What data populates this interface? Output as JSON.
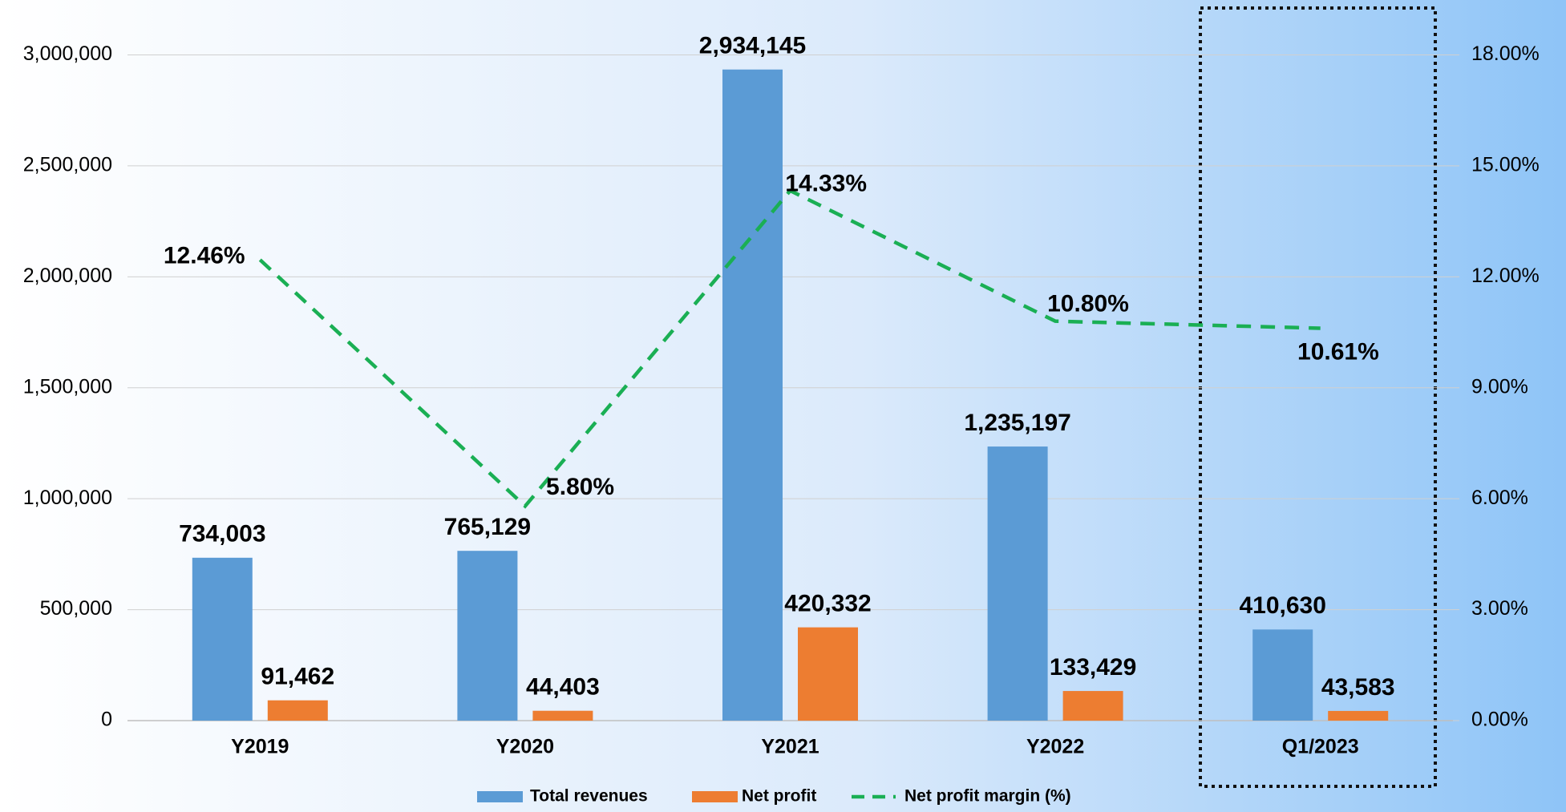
{
  "chart_data": {
    "type": "bar_line",
    "categories": [
      "Y2019",
      "Y2020",
      "Y2021",
      "Y2022",
      "Q1/2023"
    ],
    "series": [
      {
        "name": "Total revenues",
        "color": "#5b9bd5",
        "values": [
          734003,
          765129,
          2934145,
          1235197,
          410630
        ],
        "value_labels": [
          "734,003",
          "765,129",
          "2,934,145",
          "1,235,197",
          "410,630"
        ],
        "label_color": "#404040"
      },
      {
        "name": "Net profit",
        "color": "#ed7d31",
        "values": [
          91462,
          44403,
          420332,
          133429,
          43583
        ],
        "value_labels": [
          "91,462",
          "44,403",
          "420,332",
          "133,429",
          "43,583"
        ],
        "label_color": "#00b050"
      },
      {
        "name": "Net profit margin (%)",
        "color": "#1aaf54",
        "axis": "y2",
        "line_style": "dashed",
        "values": [
          12.46,
          5.8,
          14.33,
          10.8,
          10.61
        ],
        "value_labels": [
          "12.46%",
          "5.80%",
          "14.33%",
          "10.80%",
          "10.61%"
        ],
        "label_color": "#0000e0"
      }
    ],
    "ylim": [
      0,
      3000000
    ],
    "yticks": [
      0,
      {
        "value": 500000,
        "label": "500,000"
      },
      {
        "value": 1000000,
        "label": "1,000,000"
      },
      {
        "value": 1500000,
        "label": "1,500,000"
      },
      {
        "value": 2000000,
        "label": "2,000,000"
      },
      {
        "value": 2500000,
        "label": "2,500,000"
      },
      {
        "value": 3000000,
        "label": "3,000,000"
      }
    ],
    "y2lim": [
      0,
      18
    ],
    "y2ticks": [
      {
        "value": 0,
        "label": "0.00%"
      },
      {
        "value": 3,
        "label": "3.00%"
      },
      {
        "value": 6,
        "label": "6.00%"
      },
      {
        "value": 9,
        "label": "9.00%"
      },
      {
        "value": 12,
        "label": "12.00%"
      },
      {
        "value": 15,
        "label": "15.00%"
      },
      {
        "value": 18,
        "label": "18.00%"
      }
    ],
    "grid": true,
    "legend": "bottom"
  }
}
